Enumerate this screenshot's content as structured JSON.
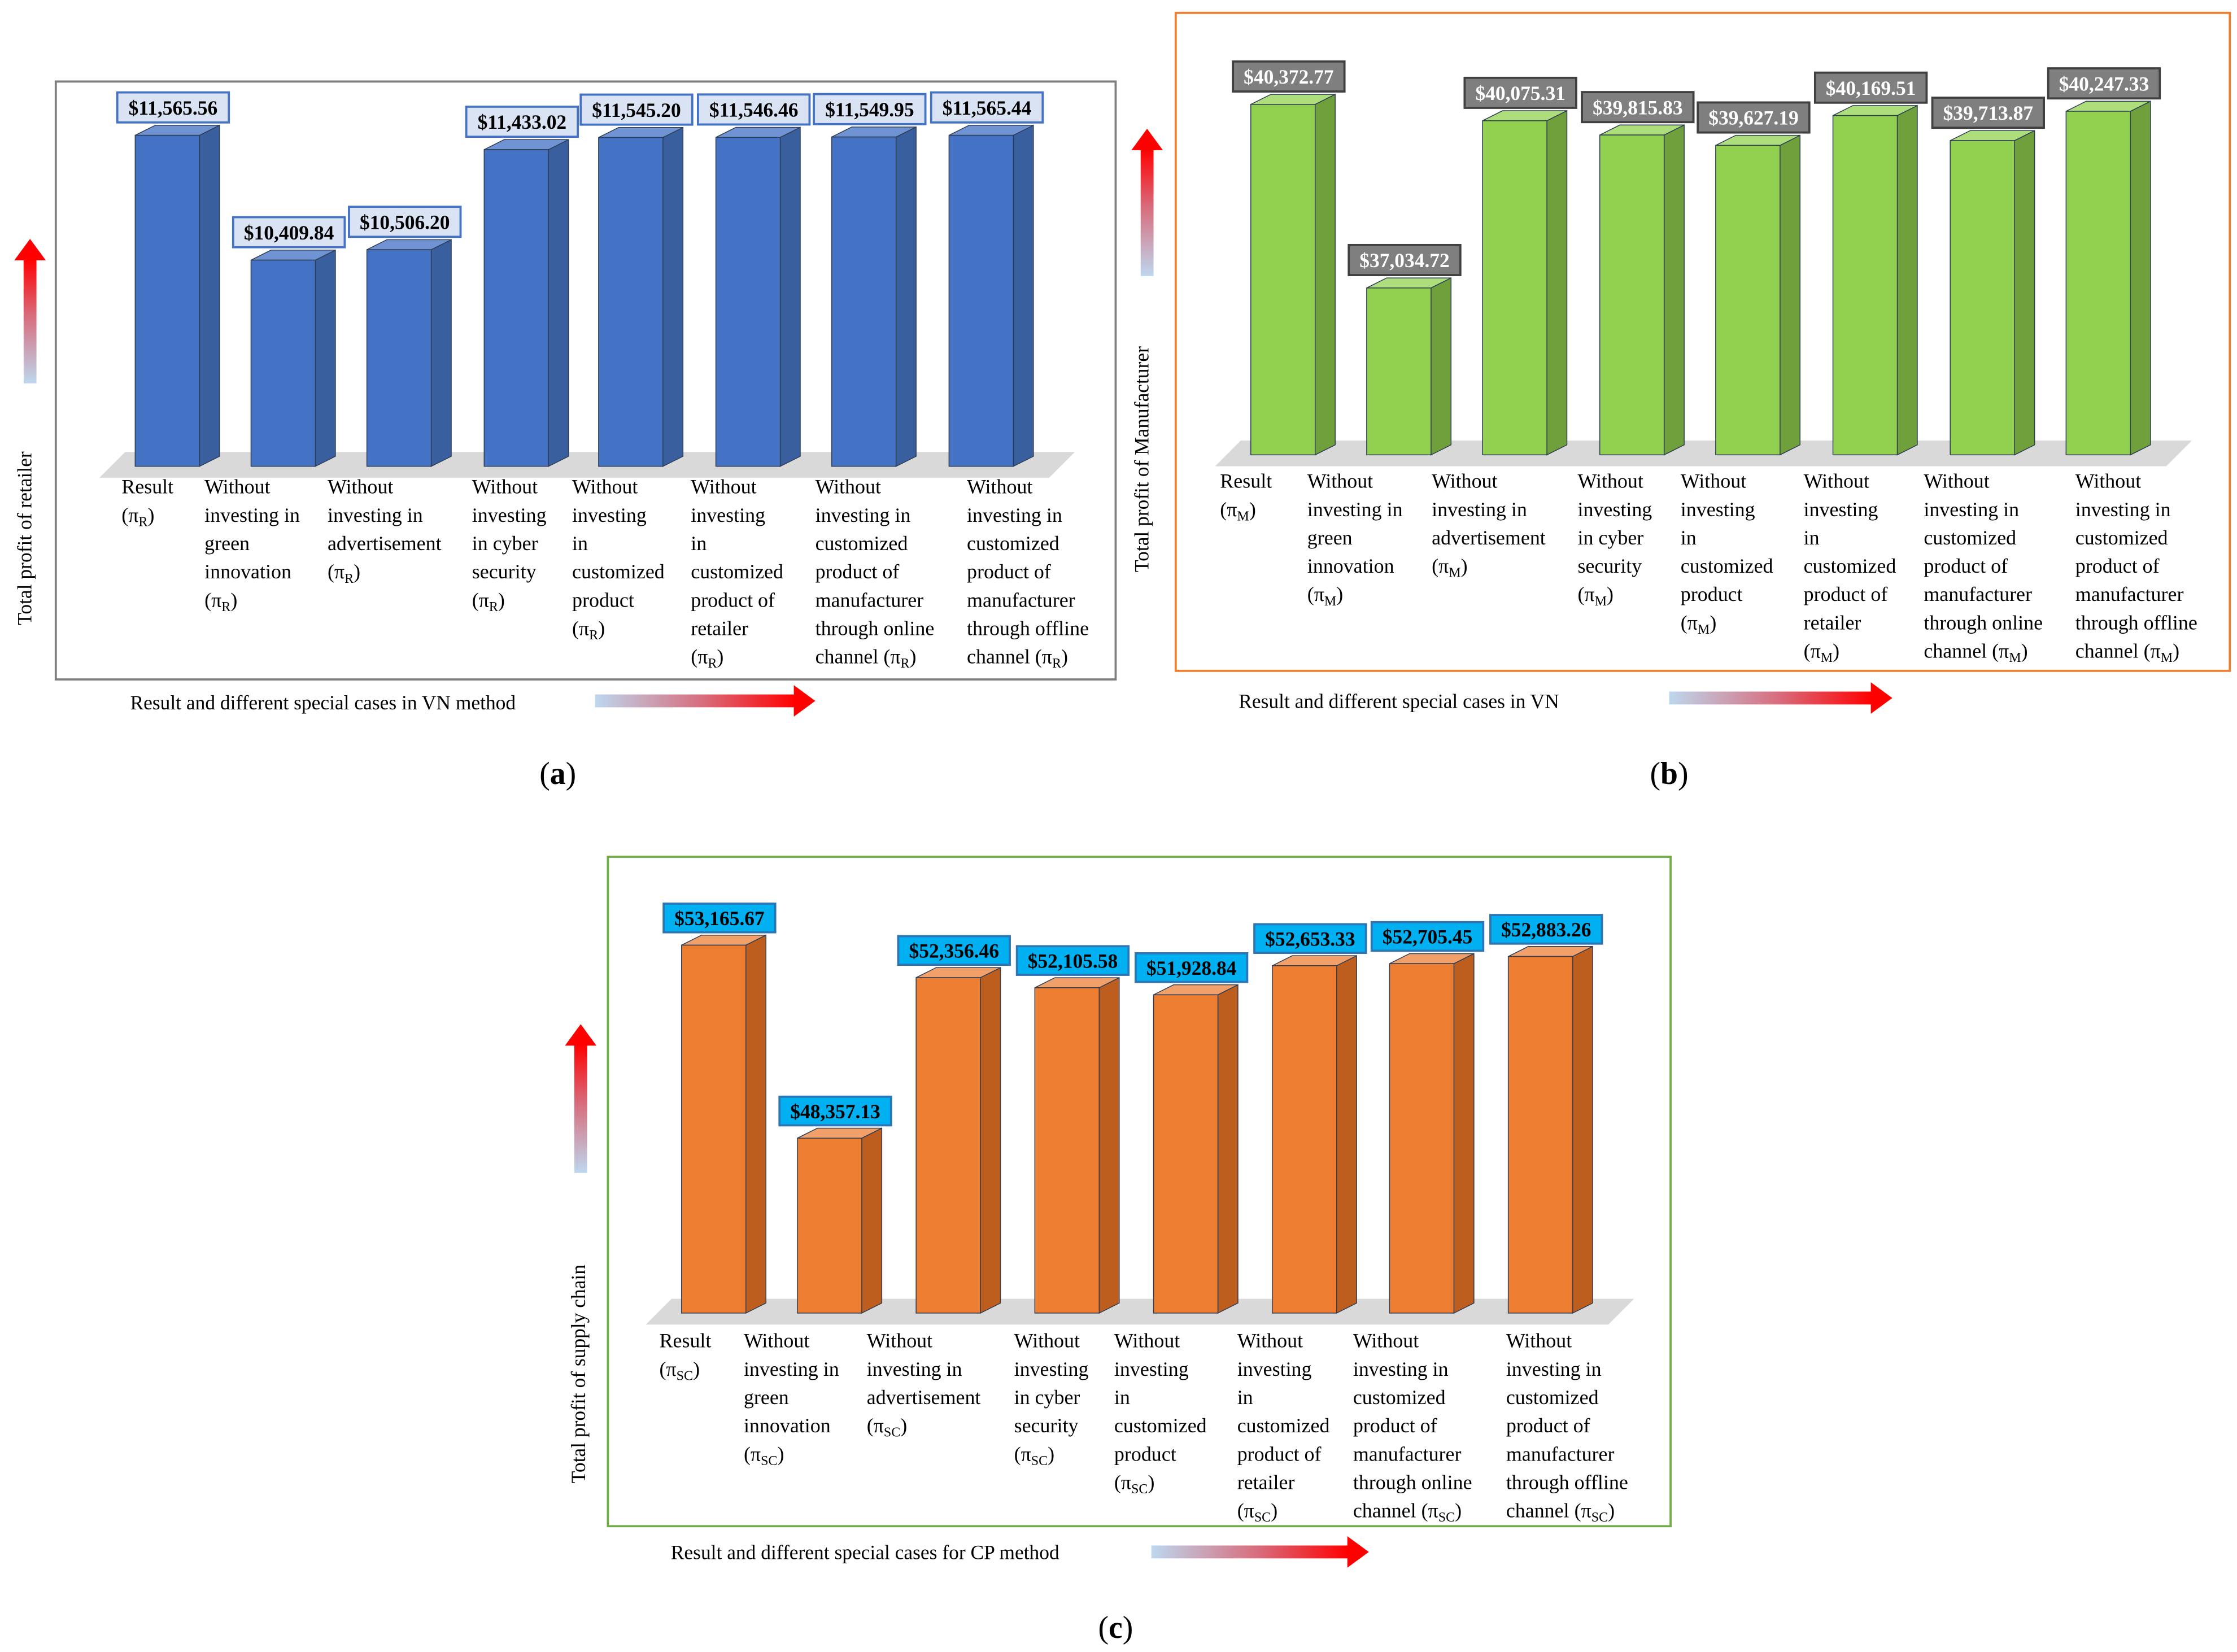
{
  "chart_data": [
    {
      "id": "a",
      "type": "bar",
      "caption": "a",
      "title": "",
      "xlabel": "Result and different special cases in VN method",
      "ylabel": "Total profit of retailer",
      "ylim": [
        8500,
        11600
      ],
      "categories": [
        [
          "Result",
          "(πR)"
        ],
        [
          "Without",
          "investing in",
          "green",
          "innovation",
          "(πR)"
        ],
        [
          "Without",
          "investing in",
          "advertisement",
          "(πR)"
        ],
        [
          "Without",
          "investing",
          "in cyber",
          "security",
          "(πR)"
        ],
        [
          "Without",
          "investing",
          "in",
          "customized",
          "product",
          "(πR)"
        ],
        [
          "Without",
          "investing",
          "in",
          "customized",
          "product of",
          "retailer",
          "(πR)"
        ],
        [
          "Without",
          "investing in",
          "customized",
          "product of",
          "manufacturer",
          "through online",
          "channel (πR)"
        ],
        [
          "Without",
          "investing in",
          "customized",
          "product of",
          "manufacturer",
          "through offline",
          "channel (πR)"
        ]
      ],
      "series": [
        {
          "name": "Total profit of retailer",
          "values": [
            11565.56,
            10409.84,
            10506.2,
            11433.02,
            11545.2,
            11546.46,
            11549.95,
            11565.44
          ]
        }
      ],
      "data_labels": [
        "$11,565.56",
        "$10,409.84",
        "$10,506.20",
        "$11,433.02",
        "$11,545.20",
        "$11,546.46",
        "$11,549.95",
        "$11,565.44"
      ],
      "colors": {
        "bar_front": "#4472C4",
        "bar_side": "#3A5F9F",
        "bar_top": "#6F93D3",
        "label_fill": "#DAE3F3",
        "label_stroke": "#4472C4",
        "label_text": "#000000",
        "border": "#7F7F7F"
      }
    },
    {
      "id": "b",
      "type": "bar",
      "caption": "b",
      "title": "",
      "xlabel": "Result and different special cases in VN",
      "ylabel": "Total profit of Manufacturer",
      "ylim": [
        34000,
        40450
      ],
      "categories": [
        [
          "Result",
          "(πM)"
        ],
        [
          "Without",
          "investing in",
          "green",
          "innovation",
          "(πM)"
        ],
        [
          "Without",
          "investing in",
          "advertisement",
          "(πM)"
        ],
        [
          "Without",
          "investing",
          "in cyber",
          "security",
          "(πM)"
        ],
        [
          "Without",
          "investing",
          "in",
          "customized",
          "product",
          "(πM)"
        ],
        [
          "Without",
          "investing",
          "in",
          "customized",
          "product of",
          "retailer",
          "(πM)"
        ],
        [
          "Without",
          "investing in",
          "customized",
          "product of",
          "manufacturer",
          "through online",
          "channel (πM)"
        ],
        [
          "Without",
          "investing in",
          "customized",
          "product of",
          "manufacturer",
          "through offline",
          "channel (πM)"
        ]
      ],
      "series": [
        {
          "name": "Total profit of Manufacturer",
          "values": [
            40372.77,
            37034.72,
            40075.31,
            39815.83,
            39627.19,
            40169.51,
            39713.87,
            40247.33
          ]
        }
      ],
      "data_labels": [
        "$40,372.77",
        "$37,034.72",
        "$40,075.31",
        "$39,815.83",
        "$39,627.19",
        "$40,169.51",
        "$39,713.87",
        "$40,247.33"
      ],
      "colors": {
        "bar_front": "#92D050",
        "bar_side": "#70A03C",
        "bar_top": "#AEDD7C",
        "label_fill": "#7F7F7F",
        "label_stroke": "#404040",
        "label_text": "#FFFFFF",
        "border": "#ED7D31"
      }
    },
    {
      "id": "c",
      "type": "bar",
      "caption": "c",
      "title": "",
      "xlabel": "Result and different special cases for CP method",
      "ylabel": "Total profit of supply chain",
      "ylim": [
        44000,
        53300
      ],
      "categories": [
        [
          "Result",
          "(πSC)"
        ],
        [
          "Without",
          "investing in",
          "green",
          "innovation",
          "(πSC)"
        ],
        [
          "Without",
          "investing in",
          "advertisement",
          "(πSC)"
        ],
        [
          "Without",
          "investing",
          "in cyber",
          "security",
          "(πSC)"
        ],
        [
          "Without",
          "investing",
          "in",
          "customized",
          "product",
          "(πSC)"
        ],
        [
          "Without",
          "investing",
          "in",
          "customized",
          "product of",
          "retailer",
          "(πSC)"
        ],
        [
          "Without",
          "investing in",
          "customized",
          "product of",
          "manufacturer",
          "through online",
          "channel (πSC)"
        ],
        [
          "Without",
          "investing in",
          "customized",
          "product of",
          "manufacturer",
          "through offline",
          "channel (πSC)"
        ]
      ],
      "series": [
        {
          "name": "Total profit of supply chain",
          "values": [
            53165.67,
            48357.13,
            52356.46,
            52105.58,
            51928.84,
            52653.33,
            52705.45,
            52883.26
          ]
        }
      ],
      "data_labels": [
        "$53,165.67",
        "$48,357.13",
        "$52,356.46",
        "$52,105.58",
        "$51,928.84",
        "$52,653.33",
        "$52,705.45",
        "$52,883.26"
      ],
      "colors": {
        "bar_front": "#ED7D31",
        "bar_side": "#BE5E1E",
        "bar_top": "#F2A06A",
        "label_fill": "#00B0F0",
        "label_stroke": "#2E75B6",
        "label_text": "#000000",
        "border": "#70AD47"
      }
    }
  ]
}
